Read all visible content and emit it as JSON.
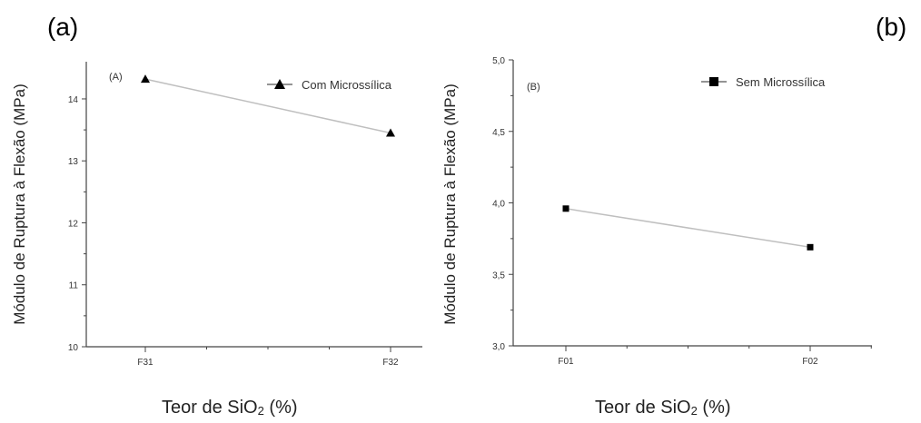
{
  "panel_labels": [
    "(a)",
    "(b)"
  ],
  "chart_data": [
    {
      "type": "line",
      "panel_label": "(A)",
      "categories": [
        "F31",
        "F32"
      ],
      "series": [
        {
          "name": "Com Microssílica",
          "values": [
            14.32,
            13.45
          ],
          "marker": "triangle"
        }
      ],
      "ylabel": "Módulo de Ruptura à Flexão (MPa)",
      "xlabel_parts": [
        "Teor de SiO",
        "2",
        "(%)"
      ],
      "ylim": [
        10,
        14.6
      ],
      "yticks": [
        10,
        11,
        12,
        13,
        14
      ],
      "grid": false,
      "legend": "top-right",
      "line_color": "#bfbfbf"
    },
    {
      "type": "line",
      "panel_label": "(B)",
      "categories": [
        "F01",
        "F02"
      ],
      "series": [
        {
          "name": "Sem Microssílica",
          "values": [
            3.96,
            3.69
          ],
          "marker": "square"
        }
      ],
      "ylabel": "Módulo de Ruptura à Flexão (MPa)",
      "xlabel_parts": [
        "Teor de SiO",
        "2",
        "(%)"
      ],
      "ylim": [
        3.0,
        5.0
      ],
      "yticks": [
        "3,0",
        "3,5",
        "4,0",
        "4,5",
        "5,0"
      ],
      "grid": false,
      "legend": "top-right",
      "line_color": "#bfbfbf"
    }
  ]
}
